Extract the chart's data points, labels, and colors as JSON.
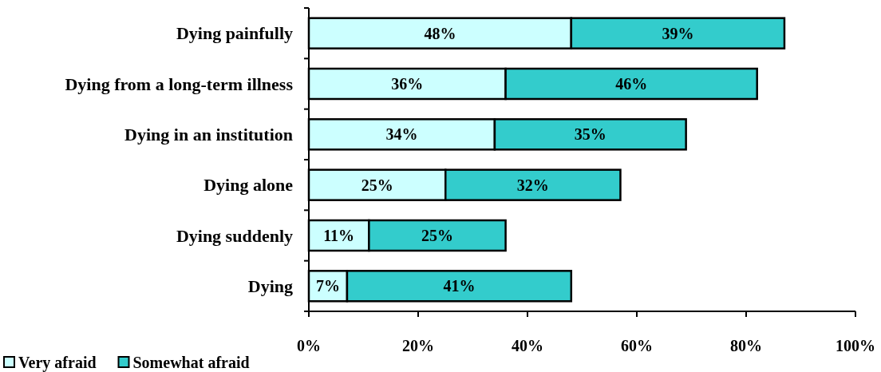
{
  "chart_data": {
    "type": "bar",
    "orientation": "horizontal",
    "stacked": true,
    "categories": [
      "Dying painfully",
      "Dying from a long-term illness",
      "Dying in an institution",
      "Dying alone",
      "Dying suddenly",
      "Dying"
    ],
    "series": [
      {
        "name": "Very afraid",
        "color": "#ccffff",
        "values": [
          48,
          36,
          34,
          25,
          11,
          7
        ],
        "value_labels": [
          "48%",
          "36%",
          "34%",
          "25%",
          "11%",
          "7%"
        ]
      },
      {
        "name": "Somewhat afraid",
        "color": "#33cccc",
        "values": [
          39,
          46,
          35,
          32,
          25,
          41
        ],
        "value_labels": [
          "39%",
          "46%",
          "35%",
          "32%",
          "25%",
          "41%"
        ]
      }
    ],
    "xlim": [
      0,
      100
    ],
    "xticks": [
      {
        "value": 0,
        "label": "0%"
      },
      {
        "value": 20,
        "label": "20%"
      },
      {
        "value": 40,
        "label": "40%"
      },
      {
        "value": 60,
        "label": "60%"
      },
      {
        "value": 80,
        "label": "80%"
      },
      {
        "value": 100,
        "label": "100%"
      }
    ],
    "legend": "bottom left"
  }
}
